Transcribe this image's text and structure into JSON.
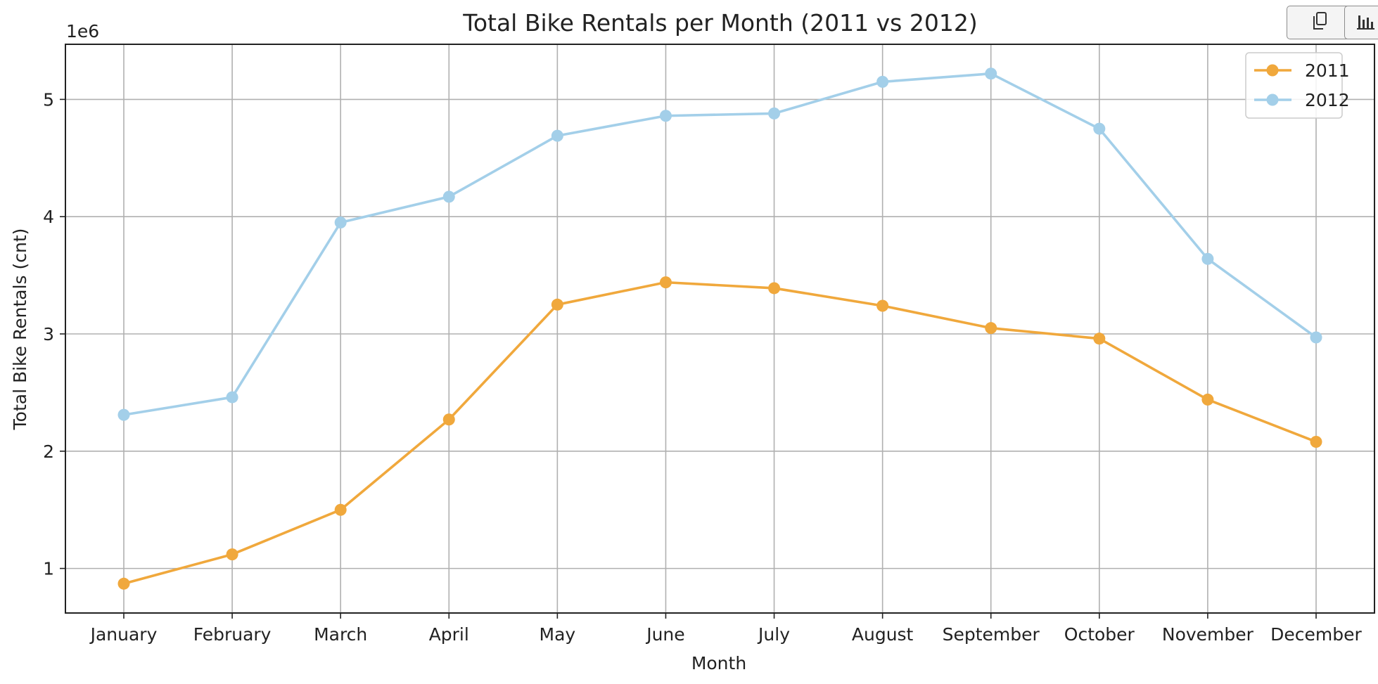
{
  "toolbar": {
    "copy_icon": "copy-icon",
    "chart_icon": "bar-chart-icon"
  },
  "chart_data": {
    "type": "line",
    "title": "Total Bike Rentals per Month (2011 vs 2012)",
    "xlabel": "Month",
    "ylabel": "Total Bike Rentals (cnt)",
    "offset_label": "1e6",
    "categories": [
      "January",
      "February",
      "March",
      "April",
      "May",
      "June",
      "July",
      "August",
      "September",
      "October",
      "November",
      "December"
    ],
    "ylim": [
      0.62,
      5.47
    ],
    "yticks": [
      1,
      2,
      3,
      4,
      5
    ],
    "ytick_labels": [
      "1",
      "2",
      "3",
      "4",
      "5"
    ],
    "grid": true,
    "legend_position": "top-right",
    "series": [
      {
        "name": "2011",
        "color": "#f0a83c",
        "marker": "circle",
        "values": [
          0.87,
          1.12,
          1.5,
          2.27,
          3.25,
          3.44,
          3.39,
          3.24,
          3.05,
          2.96,
          2.44,
          2.08
        ]
      },
      {
        "name": "2012",
        "color": "#a3cfe9",
        "marker": "circle",
        "values": [
          2.31,
          2.46,
          3.95,
          4.17,
          4.69,
          4.86,
          4.88,
          5.15,
          5.22,
          4.75,
          3.64,
          2.97
        ]
      }
    ]
  }
}
